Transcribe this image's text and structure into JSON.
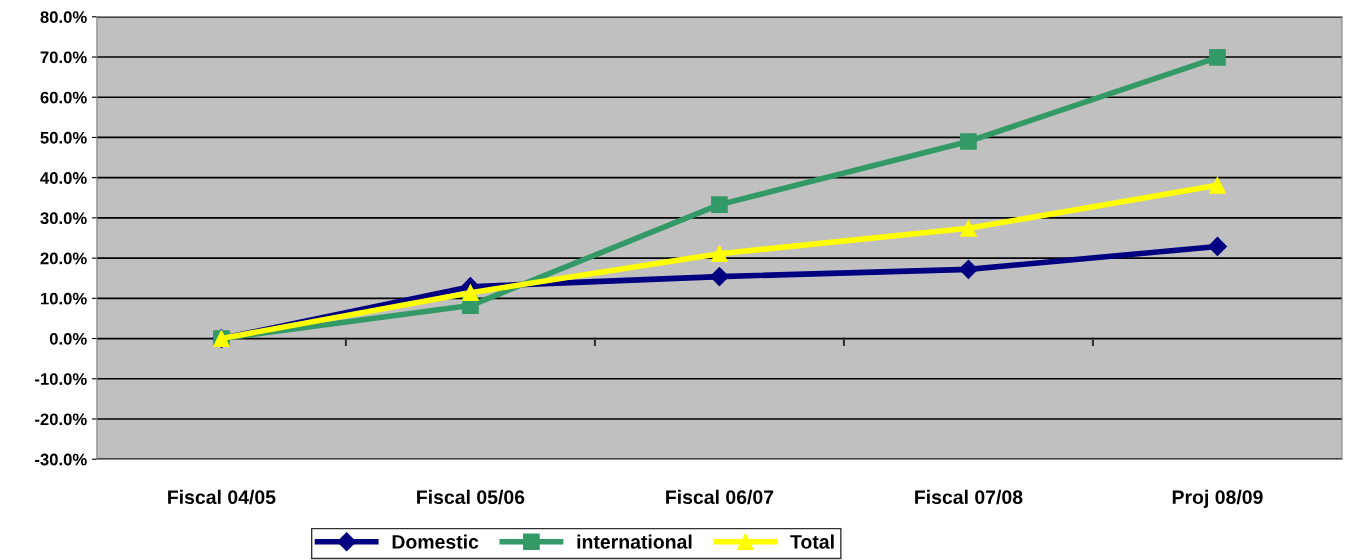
{
  "chart_data": {
    "type": "line",
    "categories": [
      "Fiscal 04/05",
      "Fiscal 05/06",
      "Fiscal 06/07",
      "Fiscal 07/08",
      "Proj 08/09"
    ],
    "series": [
      {
        "name": "Domestic",
        "color": "#000080",
        "marker": "diamond",
        "values": [
          0,
          12.9,
          15.4,
          17.2,
          22.9
        ]
      },
      {
        "name": "international",
        "color": "#339966",
        "marker": "square",
        "values": [
          0,
          8.2,
          33.3,
          49.0,
          69.9
        ]
      },
      {
        "name": "Total",
        "color": "#ffff00",
        "marker": "triangle",
        "values": [
          0,
          11.4,
          21.1,
          27.4,
          38.1
        ]
      }
    ],
    "ylim": [
      -30,
      80
    ],
    "yticks": [
      {
        "value": -30,
        "label": "-30.0%"
      },
      {
        "value": -20,
        "label": "-20.0%"
      },
      {
        "value": -10,
        "label": "-10.0%"
      },
      {
        "value": 0,
        "label": "0.0%"
      },
      {
        "value": 10,
        "label": "10.0%"
      },
      {
        "value": 20,
        "label": "20.0%"
      },
      {
        "value": 30,
        "label": "30.0%"
      },
      {
        "value": 40,
        "label": "40.0%"
      },
      {
        "value": 50,
        "label": "50.0%"
      },
      {
        "value": 60,
        "label": "60.0%"
      },
      {
        "value": 70,
        "label": "70.0%"
      },
      {
        "value": 80,
        "label": "80.0%"
      }
    ],
    "grid": "y",
    "legend": "bottom",
    "line_style": "solid"
  }
}
